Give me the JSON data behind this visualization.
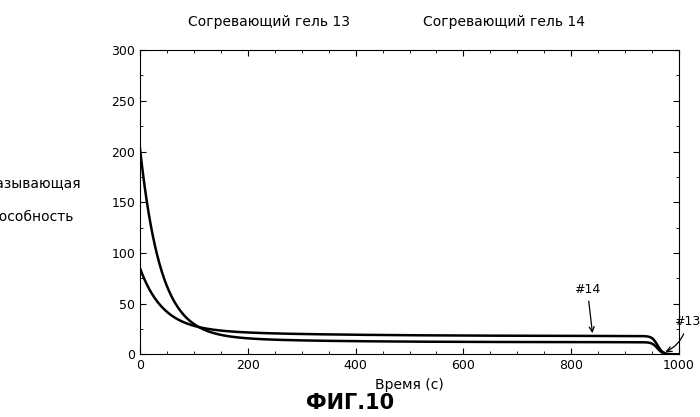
{
  "title_left": "Согревающий гель 13",
  "title_right": "Согревающий гель 14",
  "xlabel": "Время (с)",
  "ylabel_line1": "Смазывающая",
  "ylabel_line2": "способность",
  "fig_label": "ФИГ.10",
  "xlim": [
    0,
    1000
  ],
  "ylim": [
    0,
    300
  ],
  "xticks": [
    0,
    200,
    400,
    600,
    800,
    1000
  ],
  "yticks": [
    0,
    50,
    100,
    150,
    200,
    250,
    300
  ],
  "background_color": "#ffffff",
  "line_color": "#000000",
  "label_13": "#13",
  "label_14": "#14"
}
